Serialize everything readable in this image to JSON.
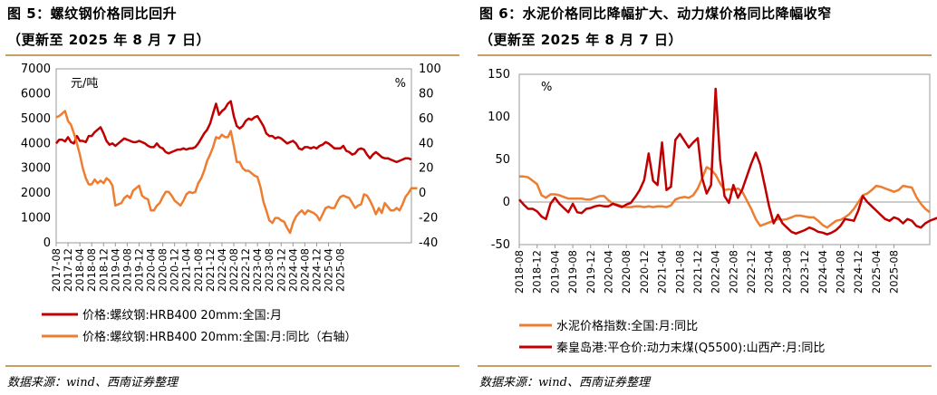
{
  "left": {
    "title": "图 5：螺纹钢价格同比回升",
    "subtitle": "（更新至 2025 年 8 月 7 日）",
    "source": "数据来源：wind、西南证券整理",
    "chart_data": {
      "type": "line",
      "unit_left": "元/吨",
      "unit_right": "%",
      "y_left_ticks": [
        "0",
        "1000",
        "2000",
        "3000",
        "4000",
        "5000",
        "6000",
        "7000"
      ],
      "y_right_ticks": [
        "-40",
        "-20",
        "0",
        "20",
        "40",
        "60",
        "80",
        "100"
      ],
      "ylim_left": [
        0,
        7000
      ],
      "ylim_right": [
        -40,
        100
      ],
      "x_labels": [
        "2017-08",
        "2017-12",
        "2018-04",
        "2018-08",
        "2018-12",
        "2019-04",
        "2019-08",
        "2019-12",
        "2020-04",
        "2020-08",
        "2020-12",
        "2021-04",
        "2021-08",
        "2021-12",
        "2022-04",
        "2022-08",
        "2022-12",
        "2023-04",
        "2023-08",
        "2023-12",
        "2024-04",
        "2024-08",
        "2024-12",
        "2025-04",
        "2025-08"
      ],
      "x_start": "2017-08",
      "series": [
        {
          "name": "价格:螺纹钢:HRB400 20mm:全国:月",
          "axis": "left",
          "color": "#c00000",
          "values": [
            4000,
            4150,
            4150,
            4080,
            4250,
            4050,
            4000,
            4300,
            4100,
            4100,
            4050,
            4300,
            4300,
            4450,
            4550,
            4650,
            4400,
            4100,
            3950,
            4000,
            3900,
            4000,
            4100,
            4200,
            4150,
            4100,
            4050,
            4050,
            4100,
            4050,
            4000,
            3900,
            3850,
            3850,
            4000,
            3850,
            3800,
            3650,
            3600,
            3650,
            3700,
            3750,
            3750,
            3800,
            3750,
            3800,
            3800,
            3850,
            4000,
            4200,
            4400,
            4550,
            4800,
            5200,
            5600,
            5150,
            5300,
            5400,
            5600,
            5700,
            5100,
            4700,
            4600,
            4700,
            4900,
            5000,
            4950,
            5050,
            5100,
            4900,
            4700,
            4400,
            4300,
            4300,
            4200,
            4250,
            4200,
            4100,
            4000,
            4050,
            4100,
            4000,
            3800,
            3750,
            3850,
            3850,
            3800,
            3850,
            3800,
            3900,
            3950,
            4050,
            4000,
            3900,
            3800,
            3800,
            3800,
            3900,
            3700,
            3650,
            3550,
            3600,
            3750,
            3800,
            3750,
            3550,
            3400,
            3550,
            3650,
            3550,
            3450,
            3400,
            3400,
            3350,
            3300,
            3250,
            3300,
            3350,
            3400,
            3400,
            3350
          ]
        },
        {
          "name": "价格:螺纹钢:HRB400 20mm:全国:月:同比（右轴）",
          "axis": "right",
          "color": "#ed7d31",
          "values": [
            61,
            62,
            64,
            66,
            58,
            55,
            48,
            40,
            31,
            20,
            12,
            7,
            7,
            11,
            8,
            10,
            8,
            12,
            10,
            6,
            -10,
            -9,
            -8,
            -4,
            -2,
            -4,
            2,
            4,
            6,
            -2,
            -4,
            -5,
            -14,
            -14,
            -10,
            -8,
            -3,
            1,
            1,
            -2,
            -6,
            -8,
            -10,
            -6,
            -1,
            1,
            0,
            1,
            8,
            12,
            18,
            26,
            31,
            37,
            45,
            44,
            47,
            45,
            45,
            50,
            38,
            25,
            25,
            20,
            18,
            18,
            16,
            14,
            13,
            5,
            -7,
            -14,
            -22,
            -24,
            -20,
            -20,
            -22,
            -23,
            -28,
            -32,
            -24,
            -19,
            -16,
            -14,
            -17,
            -14,
            -15,
            -16,
            -18,
            -22,
            -17,
            -12,
            -11,
            -12,
            -12,
            -7,
            -3,
            -2,
            -3,
            -4,
            -8,
            -12,
            -10,
            -9,
            -1,
            -2,
            -6,
            -11,
            -17,
            -12,
            -16,
            -8,
            -11,
            -14,
            -14,
            -12,
            -14,
            -9,
            -3,
            0,
            4,
            4,
            4
          ]
        }
      ]
    }
  },
  "right": {
    "title": "图 6：水泥价格同比降幅扩大、动力煤价格同比降幅收窄",
    "subtitle": "（更新至 2025 年 8 月 7 日）",
    "source": "数据来源：wind、西南证券整理",
    "chart_data": {
      "type": "line",
      "unit_left": "%",
      "y_ticks": [
        "-50",
        "0",
        "50",
        "100",
        "150"
      ],
      "ylim": [
        -50,
        150
      ],
      "x_labels": [
        "2018-08",
        "2018-12",
        "2019-04",
        "2019-08",
        "2019-12",
        "2020-04",
        "2020-08",
        "2020-12",
        "2021-04",
        "2021-08",
        "2021-12",
        "2022-04",
        "2022-08",
        "2022-12",
        "2023-04",
        "2023-08",
        "2023-12",
        "2024-04",
        "2024-08",
        "2024-12",
        "2025-04",
        "2025-08"
      ],
      "x_start": "2018-08",
      "series": [
        {
          "name": "水泥价格指数:全国:月:同比",
          "axis": "left",
          "color": "#ed7d31",
          "values": [
            30,
            30,
            29,
            25,
            21,
            8,
            5,
            9,
            9,
            8,
            6,
            4,
            4,
            4,
            4,
            3,
            3,
            5,
            7,
            7,
            2,
            -2,
            -3,
            -5,
            -6,
            -6,
            -5,
            -5,
            -6,
            -5,
            -6,
            -5,
            -5,
            -6,
            -4,
            3,
            5,
            6,
            5,
            8,
            16,
            28,
            41,
            38,
            32,
            22,
            14,
            15,
            14,
            16,
            12,
            2,
            -8,
            -20,
            -28,
            -26,
            -24,
            -22,
            -20,
            -21,
            -20,
            -18,
            -16,
            -16,
            -17,
            -18,
            -18,
            -22,
            -27,
            -30,
            -26,
            -22,
            -21,
            -18,
            -14,
            -8,
            0,
            8,
            10,
            14,
            19,
            18,
            16,
            14,
            12,
            14,
            19,
            18,
            17,
            6,
            -2,
            -8,
            -12
          ]
        },
        {
          "name": "秦皇岛港:平仓价:动力末煤(Q5500):山西产:月:同比",
          "axis": "left",
          "color": "#c00000",
          "values": [
            3,
            -3,
            -8,
            -8,
            -11,
            -17,
            -20,
            -2,
            5,
            -2,
            -7,
            -12,
            -2,
            -12,
            -13,
            -8,
            -7,
            -5,
            -4,
            -5,
            -5,
            -2,
            -4,
            -6,
            -3,
            -1,
            6,
            14,
            26,
            57,
            25,
            20,
            70,
            14,
            18,
            73,
            80,
            72,
            64,
            70,
            75,
            28,
            10,
            20,
            133,
            50,
            7,
            -1,
            20,
            5,
            15,
            30,
            45,
            58,
            44,
            20,
            -5,
            -25,
            -15,
            -25,
            -30,
            -35,
            -37,
            -35,
            -33,
            -30,
            -32,
            -35,
            -36,
            -38,
            -36,
            -33,
            -28,
            -20,
            -21,
            -22,
            -10,
            7,
            0,
            -5,
            -10,
            -15,
            -20,
            -22,
            -18,
            -20,
            -25,
            -20,
            -22,
            -28,
            -30,
            -25,
            -22,
            -20,
            -18
          ]
        }
      ]
    }
  }
}
